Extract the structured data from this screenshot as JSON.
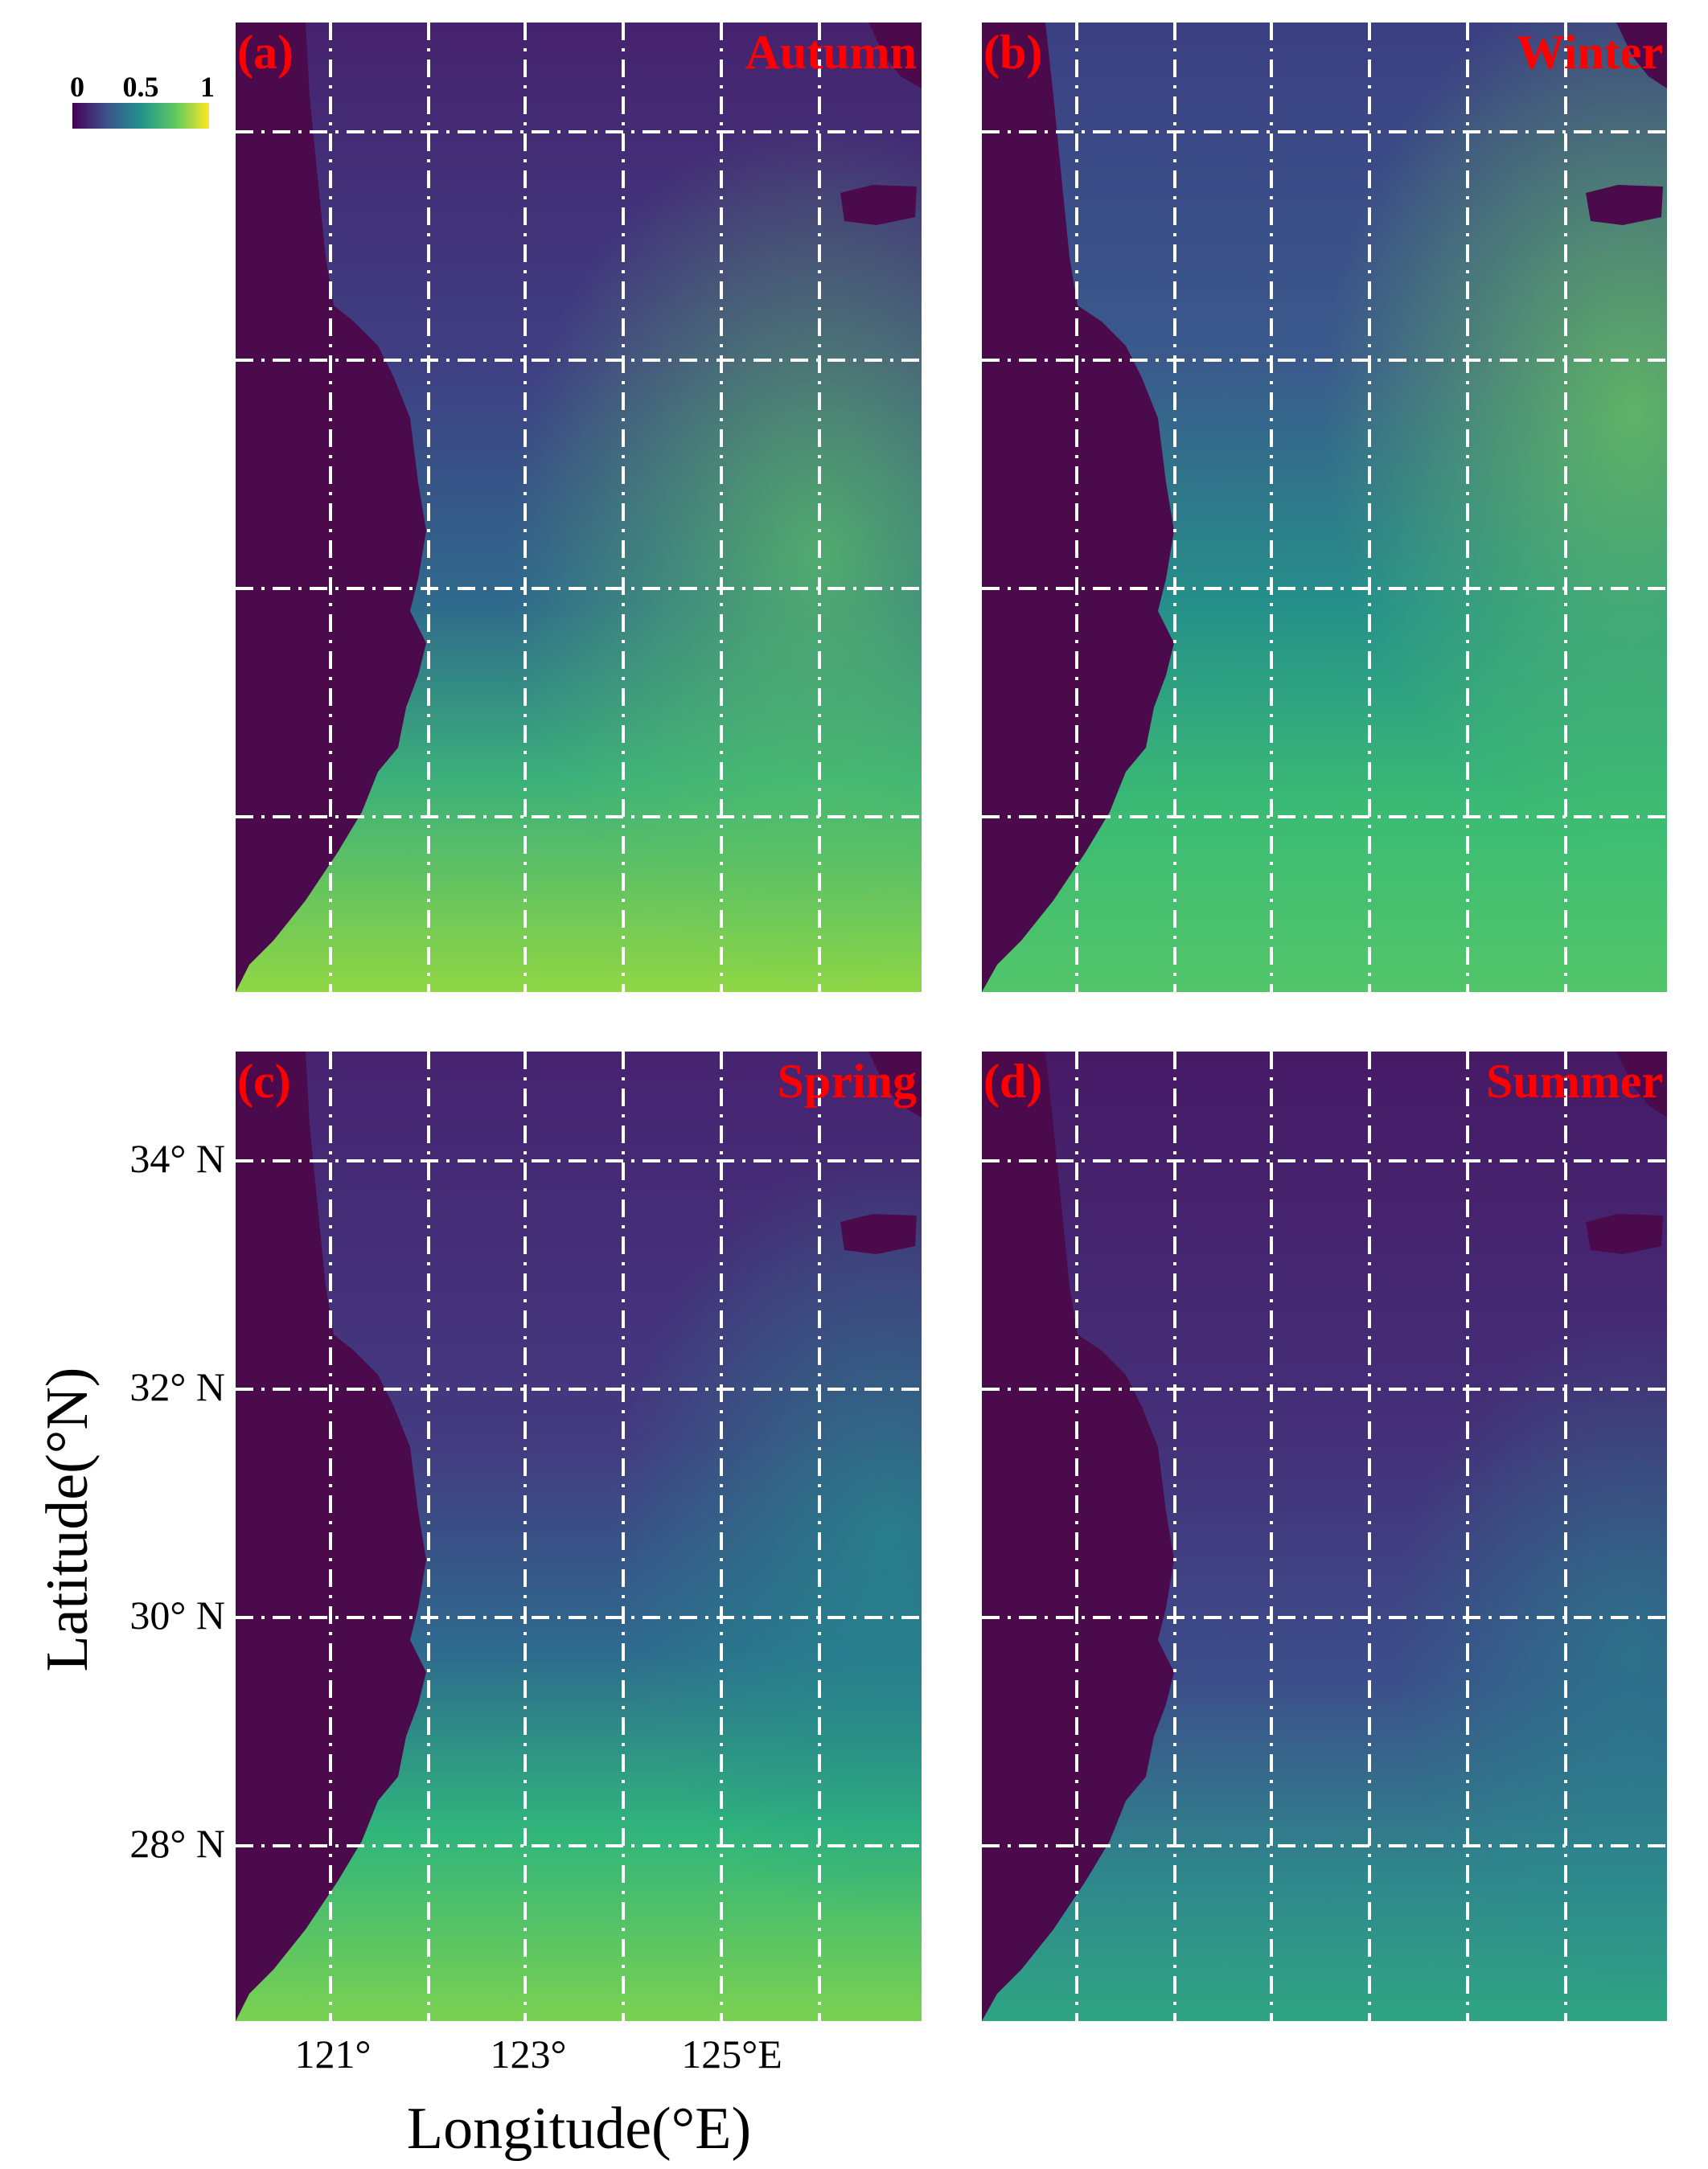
{
  "figure": {
    "panels": [
      {
        "id": "a",
        "label": "(a)",
        "season": "Autumn"
      },
      {
        "id": "b",
        "label": "(b)",
        "season": "Winter"
      },
      {
        "id": "c",
        "label": "(c)",
        "season": "Spring"
      },
      {
        "id": "d",
        "label": "(d)",
        "season": "Summer"
      }
    ],
    "colorbar": {
      "tick_labels": [
        "0",
        "0.5",
        "1"
      ],
      "range": [
        0,
        1
      ],
      "colormap": "viridis",
      "stops": [
        "#440154",
        "#3b528b",
        "#21918c",
        "#5ec962",
        "#fde725"
      ]
    },
    "axes": {
      "x_label": "Longitude(°E)",
      "y_label": "Latitude(°N)",
      "x_ticks": [
        "121°",
        "123°",
        "125°E"
      ],
      "y_ticks": [
        "34° N",
        "32° N",
        "30° N",
        "28° N"
      ]
    },
    "colors": {
      "land": "#4a0a4c",
      "grid": "#ffffff",
      "title_text": "#ff0000",
      "axis_text": "#000000"
    }
  }
}
